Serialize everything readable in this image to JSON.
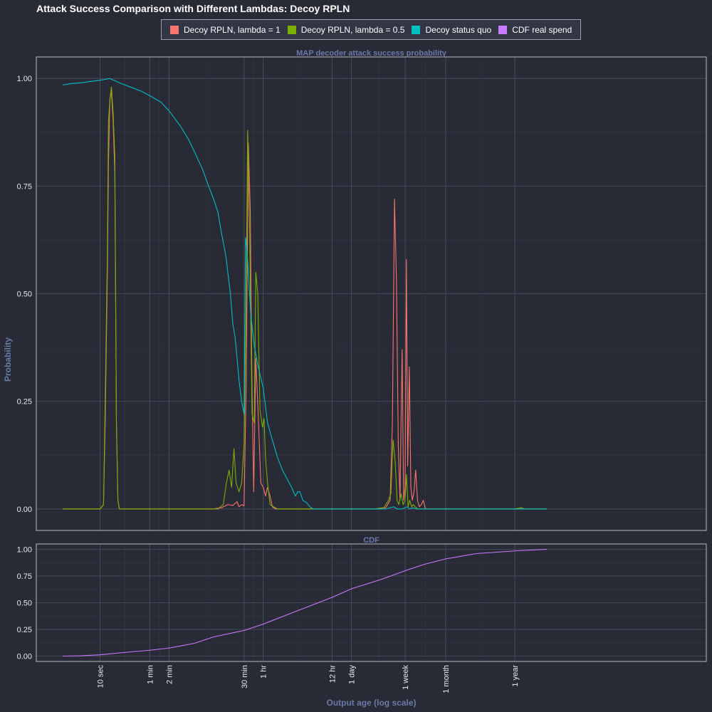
{
  "title": "Attack Success Comparison with Different Lambdas: Decoy RPLN",
  "colors": {
    "background": "#282a36",
    "panel": "#282a36",
    "grid_major": "#454858",
    "grid_minor": "#353847",
    "panel_border": "#b8bcc6"
  },
  "chart_data": [
    {
      "type": "line",
      "strip_label": "MAP decoder attack success probability",
      "xlabel": "Output age (log scale)",
      "ylabel": "Probability",
      "x_scale": "log",
      "x_unit": "seconds",
      "xlim": [
        1,
        31536000000
      ],
      "ylim": [
        -0.05,
        1.05
      ],
      "y_ticks": [
        0,
        0.25,
        0.5,
        0.75,
        1.0
      ],
      "y_tick_labels": [
        "0.00",
        "0.25",
        "0.50",
        "0.75",
        "1.00"
      ],
      "legend_position": "top",
      "series": [
        {
          "name": "Decoy RPLN, lambda = 1",
          "color": "#f8766d",
          "points": [
            [
              2.6,
              0
            ],
            [
              5,
              0
            ],
            [
              7,
              0
            ],
            [
              10,
              0
            ],
            [
              11.3,
              0.01
            ],
            [
              12,
              0.2
            ],
            [
              13,
              0.55
            ],
            [
              13.5,
              0.8
            ],
            [
              14.2,
              0.95
            ],
            [
              15,
              0.97
            ],
            [
              16,
              0.9
            ],
            [
              17,
              0.78
            ],
            [
              18,
              0.2
            ],
            [
              19,
              0.02
            ],
            [
              20,
              0
            ],
            [
              30,
              0
            ],
            [
              60,
              0
            ],
            [
              300,
              0
            ],
            [
              600,
              0
            ],
            [
              800,
              0.003
            ],
            [
              1000,
              0.01
            ],
            [
              1200,
              0.008
            ],
            [
              1400,
              0.017
            ],
            [
              1500,
              0.005
            ],
            [
              1650,
              0.01
            ],
            [
              1800,
              0.007
            ],
            [
              1950,
              0.3
            ],
            [
              2100,
              0.85
            ],
            [
              2250,
              0.7
            ],
            [
              2400,
              0.28
            ],
            [
              2550,
              0.04
            ],
            [
              2750,
              0.35
            ],
            [
              3000,
              0.22
            ],
            [
              3300,
              0.06
            ],
            [
              3600,
              0.05
            ],
            [
              3900,
              0.03
            ],
            [
              4200,
              0.05
            ],
            [
              4600,
              0.03
            ],
            [
              5000,
              0.005
            ],
            [
              5600,
              0
            ],
            [
              7200,
              0
            ],
            [
              14400,
              0
            ],
            [
              43200,
              0
            ],
            [
              86400,
              0
            ],
            [
              200000,
              0
            ],
            [
              300000,
              0.003
            ],
            [
              350000,
              0.02
            ],
            [
              380000,
              0.2
            ],
            [
              410000,
              0.72
            ],
            [
              440000,
              0.53
            ],
            [
              470000,
              0.15
            ],
            [
              500000,
              0.02
            ],
            [
              540000,
              0.37
            ],
            [
              570000,
              0.02
            ],
            [
              600000,
              0.05
            ],
            [
              630000,
              0.58
            ],
            [
              660000,
              0.1
            ],
            [
              700000,
              0.33
            ],
            [
              740000,
              0.05
            ],
            [
              780000,
              0.02
            ],
            [
              830000,
              0.04
            ],
            [
              880000,
              0.09
            ],
            [
              940000,
              0.02
            ],
            [
              1000000,
              0.005
            ],
            [
              1080000,
              0.01
            ],
            [
              1160000,
              0.02
            ],
            [
              1250000,
              0
            ],
            [
              2000000,
              0
            ],
            [
              31536000,
              0
            ],
            [
              100000000,
              0
            ]
          ]
        },
        {
          "name": "Decoy RPLN, lambda = 0.5",
          "color": "#7cae00",
          "points": [
            [
              2.6,
              0
            ],
            [
              5,
              0
            ],
            [
              7,
              0
            ],
            [
              10,
              0
            ],
            [
              11.3,
              0.01
            ],
            [
              12,
              0.25
            ],
            [
              13,
              0.6
            ],
            [
              13.5,
              0.9
            ],
            [
              14.2,
              0.95
            ],
            [
              15,
              0.98
            ],
            [
              16,
              0.92
            ],
            [
              17,
              0.82
            ],
            [
              18,
              0.2
            ],
            [
              19,
              0.02
            ],
            [
              20,
              0
            ],
            [
              30,
              0
            ],
            [
              60,
              0
            ],
            [
              300,
              0
            ],
            [
              700,
              0
            ],
            [
              850,
              0.01
            ],
            [
              950,
              0.06
            ],
            [
              1050,
              0.09
            ],
            [
              1150,
              0.05
            ],
            [
              1250,
              0.14
            ],
            [
              1350,
              0.06
            ],
            [
              1500,
              0.04
            ],
            [
              1650,
              0.06
            ],
            [
              1800,
              0.15
            ],
            [
              1950,
              0.5
            ],
            [
              2050,
              0.88
            ],
            [
              2200,
              0.65
            ],
            [
              2400,
              0.22
            ],
            [
              2600,
              0.2
            ],
            [
              2750,
              0.55
            ],
            [
              2950,
              0.5
            ],
            [
              3200,
              0.23
            ],
            [
              3500,
              0.19
            ],
            [
              3700,
              0.21
            ],
            [
              3900,
              0.12
            ],
            [
              4200,
              0.06
            ],
            [
              4600,
              0.01
            ],
            [
              5200,
              0.005
            ],
            [
              6000,
              0
            ],
            [
              7200,
              0
            ],
            [
              14400,
              0
            ],
            [
              43200,
              0
            ],
            [
              86400,
              0
            ],
            [
              200000,
              0
            ],
            [
              280000,
              0.003
            ],
            [
              330000,
              0.02
            ],
            [
              360000,
              0.035
            ],
            [
              390000,
              0.16
            ],
            [
              420000,
              0.11
            ],
            [
              450000,
              0.02
            ],
            [
              480000,
              0.01
            ],
            [
              520000,
              0.035
            ],
            [
              560000,
              0.01
            ],
            [
              600000,
              0.02
            ],
            [
              630000,
              0.08
            ],
            [
              670000,
              0.005
            ],
            [
              710000,
              0.02
            ],
            [
              760000,
              0.005
            ],
            [
              810000,
              0.01
            ],
            [
              870000,
              0.005
            ],
            [
              950000,
              0
            ],
            [
              1100000,
              0
            ],
            [
              2000000,
              0
            ],
            [
              31536000,
              0
            ],
            [
              40000000,
              0.003
            ],
            [
              44000000,
              0
            ],
            [
              100000000,
              0
            ]
          ]
        },
        {
          "name": "Decoy status quo",
          "color": "#00bfc4",
          "points": [
            [
              2.6,
              0.985
            ],
            [
              3.5,
              0.988
            ],
            [
              5,
              0.99
            ],
            [
              7,
              0.993
            ],
            [
              10,
              0.996
            ],
            [
              12,
              0.998
            ],
            [
              14,
              1.0
            ],
            [
              17,
              0.995
            ],
            [
              20,
              0.99
            ],
            [
              30,
              0.98
            ],
            [
              45,
              0.97
            ],
            [
              60,
              0.96
            ],
            [
              90,
              0.945
            ],
            [
              120,
              0.925
            ],
            [
              180,
              0.89
            ],
            [
              240,
              0.86
            ],
            [
              300,
              0.83
            ],
            [
              400,
              0.79
            ],
            [
              500,
              0.75
            ],
            [
              600,
              0.72
            ],
            [
              700,
              0.69
            ],
            [
              800,
              0.64
            ],
            [
              900,
              0.6
            ],
            [
              950,
              0.58
            ],
            [
              1000,
              0.55
            ],
            [
              1100,
              0.5
            ],
            [
              1200,
              0.43
            ],
            [
              1300,
              0.4
            ],
            [
              1400,
              0.35
            ],
            [
              1500,
              0.3
            ],
            [
              1650,
              0.25
            ],
            [
              1800,
              0.22
            ],
            [
              1900,
              0.63
            ],
            [
              2000,
              0.6
            ],
            [
              2100,
              0.55
            ],
            [
              2300,
              0.45
            ],
            [
              2600,
              0.38
            ],
            [
              3000,
              0.33
            ],
            [
              3600,
              0.28
            ],
            [
              4200,
              0.2
            ],
            [
              5000,
              0.16
            ],
            [
              6000,
              0.12
            ],
            [
              7200,
              0.09
            ],
            [
              8500,
              0.07
            ],
            [
              10000,
              0.05
            ],
            [
              11500,
              0.03
            ],
            [
              12500,
              0.04
            ],
            [
              13500,
              0.04
            ],
            [
              15000,
              0.02
            ],
            [
              17000,
              0.015
            ],
            [
              20000,
              0.003
            ],
            [
              22000,
              0
            ],
            [
              30000,
              0
            ],
            [
              43200,
              0
            ],
            [
              86400,
              0
            ],
            [
              200000,
              0
            ],
            [
              300000,
              0
            ],
            [
              400000,
              0.005
            ],
            [
              450000,
              0
            ],
            [
              550000,
              0
            ],
            [
              600000,
              0.003
            ],
            [
              650000,
              0.005
            ],
            [
              700000,
              0
            ],
            [
              800000,
              0.003
            ],
            [
              900000,
              0
            ],
            [
              1000000,
              0
            ],
            [
              2000000,
              0
            ],
            [
              31536000,
              0
            ],
            [
              100000000,
              0
            ]
          ]
        }
      ]
    },
    {
      "type": "line",
      "strip_label": "CDF",
      "xlabel": "Output age (log scale)",
      "ylabel": "",
      "x_scale": "log",
      "x_unit": "seconds",
      "xlim": [
        1,
        31536000000
      ],
      "ylim": [
        -0.05,
        1.05
      ],
      "y_ticks": [
        0,
        0.25,
        0.5,
        0.75,
        1.0
      ],
      "y_tick_labels": [
        "0.00",
        "0.25",
        "0.50",
        "0.75",
        "1.00"
      ],
      "series": [
        {
          "name": "CDF real spend",
          "color": "#c77cff",
          "points": [
            [
              2.6,
              0
            ],
            [
              5,
              0.003
            ],
            [
              10,
              0.012
            ],
            [
              20,
              0.03
            ],
            [
              60,
              0.055
            ],
            [
              120,
              0.075
            ],
            [
              300,
              0.12
            ],
            [
              600,
              0.18
            ],
            [
              1800,
              0.24
            ],
            [
              3600,
              0.3
            ],
            [
              7200,
              0.37
            ],
            [
              14400,
              0.44
            ],
            [
              43200,
              0.55
            ],
            [
              86400,
              0.63
            ],
            [
              259200,
              0.72
            ],
            [
              604800,
              0.8
            ],
            [
              1209600,
              0.86
            ],
            [
              2592000,
              0.91
            ],
            [
              7776000,
              0.96
            ],
            [
              31536000,
              0.985
            ],
            [
              100000000,
              1.0
            ]
          ]
        }
      ],
      "x_ticks": [
        10,
        60,
        120,
        1800,
        3600,
        43200,
        86400,
        604800,
        2592000,
        31536000
      ],
      "x_tick_labels": [
        "10 sec",
        "1 min",
        "2 min",
        "30 min",
        "1 hr",
        "12 hr",
        "1 day",
        "1 week",
        "1 month",
        "1 year"
      ]
    }
  ],
  "legend": [
    {
      "label": "Decoy RPLN, lambda = 1",
      "color": "#f8766d"
    },
    {
      "label": "Decoy RPLN, lambda = 0.5",
      "color": "#7cae00"
    },
    {
      "label": "Decoy status quo",
      "color": "#00bfc4"
    },
    {
      "label": "CDF real spend",
      "color": "#c77cff"
    }
  ]
}
